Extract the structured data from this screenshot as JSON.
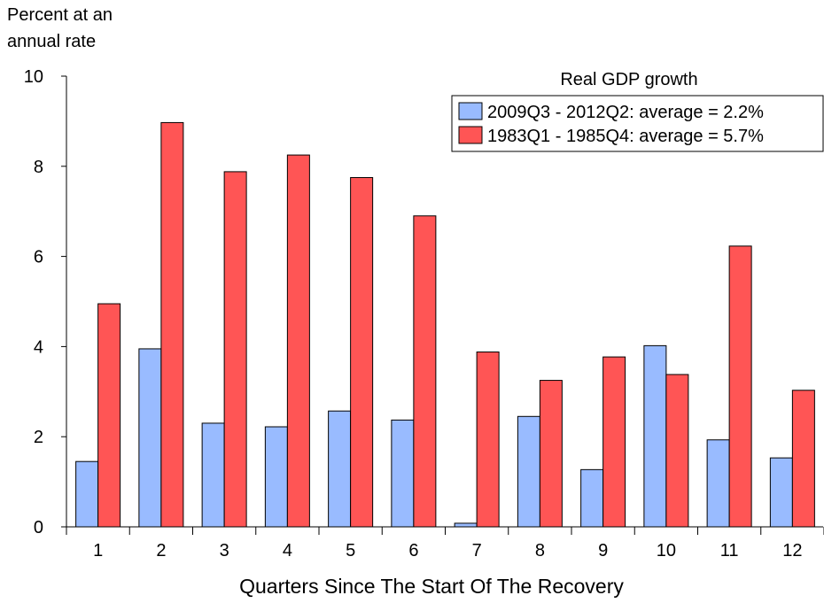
{
  "chart_data": {
    "type": "bar",
    "title": "",
    "ylabel_lines": [
      "Percent at an",
      "annual rate"
    ],
    "xlabel": "Quarters Since The Start Of The Recovery",
    "legend_title": "Real GDP growth",
    "legend_position": "top-right",
    "ylim": [
      0,
      10
    ],
    "yticks": [
      "0",
      "2",
      "4",
      "6",
      "8",
      "10"
    ],
    "categories": [
      "1",
      "2",
      "3",
      "4",
      "5",
      "6",
      "7",
      "8",
      "9",
      "10",
      "11",
      "12"
    ],
    "grid": false,
    "series": [
      {
        "name": "2009Q3 - 2012Q2: average = 2.2%",
        "color": "#99BBFF",
        "values": [
          1.45,
          3.95,
          2.3,
          2.22,
          2.57,
          2.37,
          0.08,
          2.45,
          1.27,
          4.02,
          1.93,
          1.53
        ]
      },
      {
        "name": "1983Q1 - 1985Q4: average = 5.7%",
        "color": "#FF5555",
        "values": [
          4.95,
          8.97,
          7.88,
          8.25,
          7.75,
          6.9,
          3.88,
          3.25,
          3.77,
          3.38,
          6.23,
          3.03
        ]
      }
    ]
  }
}
